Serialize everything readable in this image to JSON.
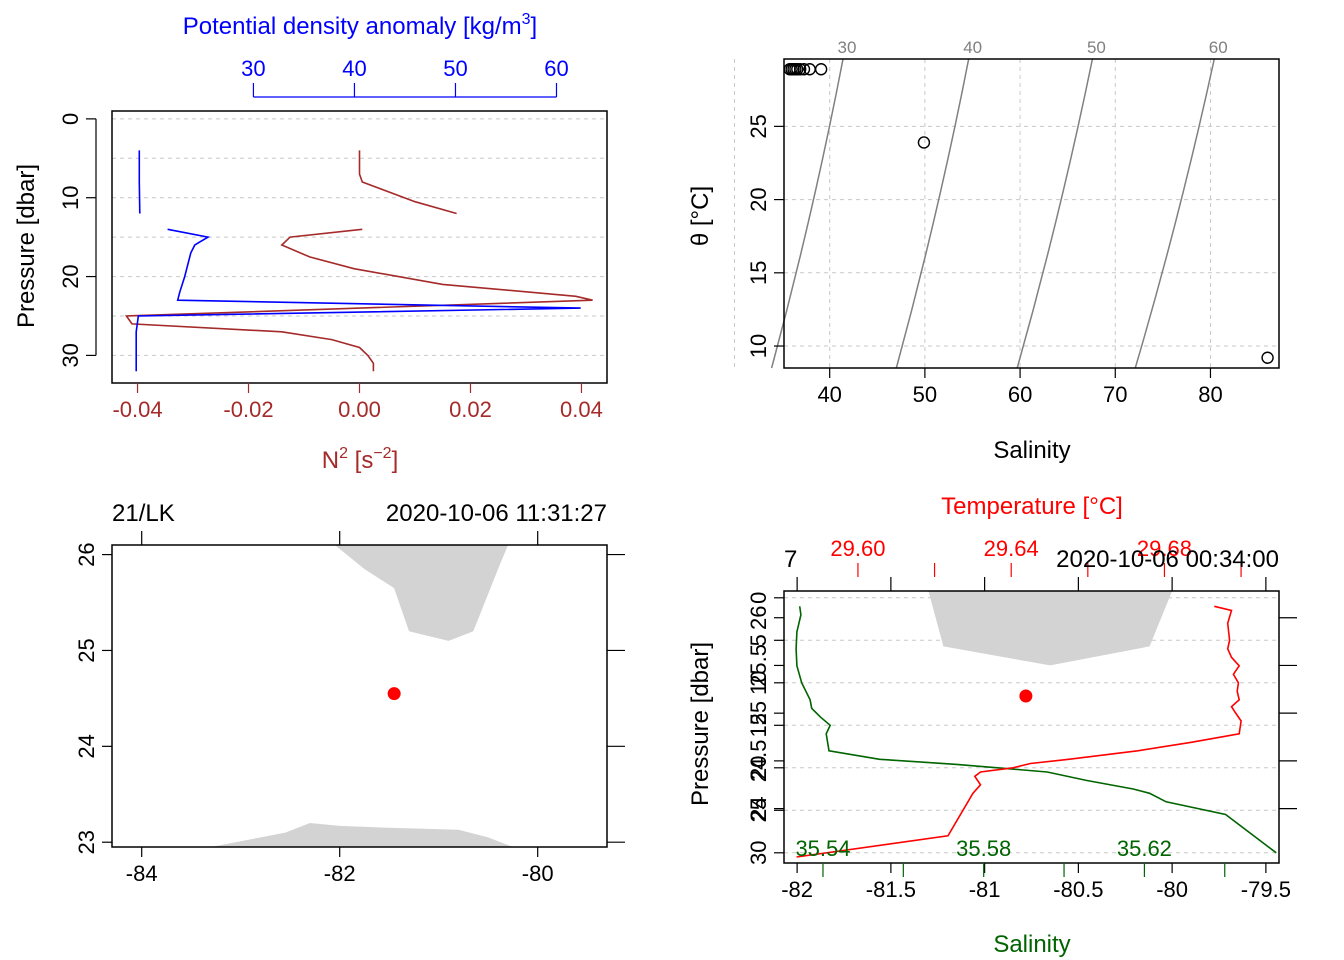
{
  "colors": {
    "axis": "#000000",
    "grid": "#c8c8c8",
    "density": "#0000ff",
    "n2": "#a52a2a",
    "land": "#d3d3d3",
    "station": "#ff0000",
    "temperature": "#ff0000",
    "salinity": "#006400",
    "isopycnal": "#808080",
    "isopycnal_label": "#808080"
  },
  "chart_data": [
    {
      "id": "profile-density-n2",
      "type": "line",
      "ylabel": "Pressure [dbar]",
      "ylim": [
        33.5,
        -1
      ],
      "y_ticks": [
        0,
        10,
        20,
        30
      ],
      "y_tick_labels": [
        "0",
        "10",
        "20",
        "30"
      ],
      "grid": true,
      "top_axis": {
        "label_prefix": "Potential density anomaly [kg/m",
        "label_sup": "3",
        "label_suffix": "]",
        "range": [
          16,
          65
        ],
        "ticks": [
          30,
          40,
          50,
          60
        ],
        "tick_labels": [
          "30",
          "40",
          "50",
          "60"
        ]
      },
      "bottom_axis": {
        "label_prefix": "N",
        "label_sup1": "2",
        "label_mid": " [s",
        "label_sup2": "−2",
        "label_suffix": "]",
        "range": [
          -0.0446,
          0.0446
        ],
        "ticks": [
          -0.04,
          -0.02,
          0,
          0.02,
          0.04
        ],
        "tick_labels": [
          "-0.04",
          "-0.02",
          "0.00",
          "0.02",
          "0.04"
        ]
      },
      "series": [
        {
          "key": "density",
          "segments": [
            [
              [
                18.7,
                4
              ],
              [
                18.7,
                8
              ],
              [
                18.75,
                12
              ]
            ],
            [
              [
                21.5,
                14
              ],
              [
                25.5,
                15
              ],
              [
                24.2,
                16
              ],
              [
                23.8,
                17
              ],
              [
                23.2,
                20
              ],
              [
                22.7,
                22
              ],
              [
                22.5,
                23
              ],
              [
                62.4,
                24
              ],
              [
                18.6,
                25
              ],
              [
                18.5,
                26
              ],
              [
                18.4,
                27
              ],
              [
                18.4,
                32
              ]
            ]
          ]
        },
        {
          "key": "n2",
          "segments": [
            [
              [
                0.0,
                4
              ],
              [
                0.0,
                7
              ],
              [
                0.0005,
                8
              ],
              [
                0.01,
                10.5
              ],
              [
                0.0175,
                12
              ]
            ],
            [
              [
                0.0005,
                14
              ],
              [
                -0.0125,
                15
              ],
              [
                -0.014,
                16
              ],
              [
                -0.009,
                17.5
              ],
              [
                -0.001,
                19
              ],
              [
                0.015,
                21
              ],
              [
                0.039,
                22.5
              ],
              [
                0.042,
                23
              ],
              [
                -0.042,
                25
              ],
              [
                -0.041,
                26
              ],
              [
                -0.014,
                27
              ],
              [
                -0.005,
                28
              ],
              [
                0.0,
                29
              ],
              [
                0.0015,
                30
              ],
              [
                0.0025,
                31
              ],
              [
                0.0025,
                32
              ]
            ]
          ]
        }
      ]
    },
    {
      "id": "ts-diagram",
      "type": "scatter",
      "xlabel": "Salinity",
      "ylabel": "θ [°C]",
      "xlim": [
        35.2,
        87.2
      ],
      "ylim": [
        8.5,
        29.6
      ],
      "x_ticks": [
        40,
        50,
        60,
        70,
        80
      ],
      "x_tick_labels": [
        "40",
        "50",
        "60",
        "70",
        "80"
      ],
      "y_ticks": [
        10,
        15,
        20,
        25
      ],
      "y_tick_labels": [
        "10",
        "15",
        "20",
        "25"
      ],
      "grid": true,
      "points": [
        {
          "x": 35.8,
          "y": 28.9
        },
        {
          "x": 36.0,
          "y": 28.9
        },
        {
          "x": 36.2,
          "y": 28.9
        },
        {
          "x": 36.4,
          "y": 28.9
        },
        {
          "x": 36.6,
          "y": 28.9
        },
        {
          "x": 36.9,
          "y": 28.9
        },
        {
          "x": 37.3,
          "y": 28.9
        },
        {
          "x": 37.9,
          "y": 28.9
        },
        {
          "x": 39.1,
          "y": 28.9
        },
        {
          "x": 49.9,
          "y": 23.9
        },
        {
          "x": 86.0,
          "y": 9.2
        }
      ],
      "isopycnals": [
        {
          "label": "30",
          "top": [
            41.4,
            29.6
          ],
          "bottom": [
            33.9,
            8.5
          ]
        },
        {
          "label": "40",
          "top": [
            54.6,
            29.6
          ],
          "bottom": [
            47.0,
            8.5
          ]
        },
        {
          "label": "50",
          "top": [
            67.6,
            29.6
          ],
          "bottom": [
            59.7,
            8.5
          ]
        },
        {
          "label": "60",
          "top": [
            80.4,
            29.6
          ],
          "bottom": [
            72.1,
            8.5
          ]
        }
      ]
    },
    {
      "id": "station-map",
      "type": "scatter",
      "title_left": "21/LK",
      "title_right": "2020-10-06 11:31:27",
      "xlim": [
        -84.3,
        -79.3
      ],
      "ylim": [
        22.95,
        26.1
      ],
      "x_ticks": [
        -84,
        -82,
        -80
      ],
      "x_tick_labels": [
        "-84",
        "-82",
        "-80"
      ],
      "y_ticks": [
        23,
        24,
        25,
        26
      ],
      "y_tick_labels": [
        "23",
        "24",
        "25",
        "26"
      ],
      "station": {
        "lon": -81.45,
        "lat": 24.55
      },
      "land": [
        [
          [
            -82.05,
            26.1
          ],
          [
            -81.75,
            25.85
          ],
          [
            -81.45,
            25.65
          ],
          [
            -81.3,
            25.2
          ],
          [
            -80.9,
            25.1
          ],
          [
            -80.65,
            25.2
          ],
          [
            -80.4,
            25.85
          ],
          [
            -80.3,
            26.1
          ]
        ],
        [
          [
            -83.3,
            22.95
          ],
          [
            -82.55,
            23.1
          ],
          [
            -82.3,
            23.2
          ],
          [
            -82.0,
            23.17
          ],
          [
            -81.5,
            23.15
          ],
          [
            -80.8,
            23.13
          ],
          [
            -80.5,
            23.05
          ],
          [
            -80.25,
            22.95
          ]
        ]
      ]
    },
    {
      "id": "profile-temperature-salinity",
      "type": "line",
      "title_left": "7",
      "title_right": "2020-10-06 00:34:00",
      "ylabel": "Pressure [dbar]",
      "ylim": [
        31.2,
        -0.8
      ],
      "y_ticks": [
        0,
        5,
        10,
        15,
        20,
        25,
        30
      ],
      "y_tick_labels": [
        "0",
        "5",
        "10",
        "15",
        "20",
        "25",
        "30"
      ],
      "grid": true,
      "temperature_axis": {
        "label": "Temperature [°C]",
        "range": [
          29.5807,
          29.7099
        ],
        "ticks": [
          29.6,
          29.62,
          29.64,
          29.66,
          29.68,
          29.7
        ],
        "tick_labels": [
          "29.60",
          "",
          "29.64",
          "",
          "29.68",
          ""
        ]
      },
      "salinity_axis": {
        "label": "Salinity",
        "range": [
          35.5303,
          35.6535
        ],
        "ticks": [
          35.54,
          35.56,
          35.58,
          35.6,
          35.62,
          35.64
        ],
        "tick_labels": [
          "35.54",
          "",
          "35.58",
          "",
          "35.62",
          ""
        ]
      },
      "map_overlay": {
        "xlim": [
          -82.07,
          -79.43
        ],
        "ylim": [
          23.43,
          26.28
        ],
        "x_ticks": [
          -82,
          -81.5,
          -81,
          -80.5,
          -80,
          -79.5
        ],
        "x_tick_labels": [
          "-82",
          "-81.5",
          "-81",
          "-80.5",
          "-80",
          "-79.5"
        ],
        "y_ticks": [
          24,
          24.5,
          25,
          25.5,
          26
        ],
        "y_tick_labels": [
          "24",
          "24.5",
          "25",
          "25.5",
          "26"
        ],
        "station": {
          "lon": -80.78,
          "lat": 25.18
        },
        "land": [
          [
            [
              -81.3,
              26.28
            ],
            [
              -81.22,
              25.7
            ],
            [
              -80.65,
              25.5
            ],
            [
              -80.12,
              25.7
            ],
            [
              -80.0,
              26.28
            ]
          ]
        ]
      },
      "series": [
        {
          "key": "temperature",
          "points": [
            [
              29.693,
              1
            ],
            [
              29.6975,
              1.5
            ],
            [
              29.6965,
              3
            ],
            [
              29.697,
              5
            ],
            [
              29.6965,
              6
            ],
            [
              29.6975,
              7
            ],
            [
              29.6995,
              8
            ],
            [
              29.698,
              9
            ],
            [
              29.6993,
              10
            ],
            [
              29.699,
              11
            ],
            [
              29.6995,
              12
            ],
            [
              29.6975,
              12.8
            ],
            [
              29.6985,
              13.5
            ],
            [
              29.7,
              14.5
            ],
            [
              29.6995,
              16
            ],
            [
              29.687,
              17
            ],
            [
              29.673,
              18
            ],
            [
              29.655,
              19
            ],
            [
              29.645,
              19.5
            ],
            [
              29.6405,
              20
            ],
            [
              29.632,
              20.5
            ],
            [
              29.6305,
              21
            ],
            [
              29.632,
              22
            ],
            [
              29.63,
              23
            ],
            [
              29.6235,
              28
            ],
            [
              29.584,
              30.5
            ]
          ]
        },
        {
          "key": "salinity",
          "points": [
            [
              35.5342,
              1
            ],
            [
              35.5345,
              2
            ],
            [
              35.5335,
              4
            ],
            [
              35.5333,
              6
            ],
            [
              35.5335,
              8
            ],
            [
              35.5347,
              10
            ],
            [
              35.5368,
              12
            ],
            [
              35.5372,
              13
            ],
            [
              35.5393,
              14
            ],
            [
              35.5418,
              15
            ],
            [
              35.5408,
              16
            ],
            [
              35.5415,
              18
            ],
            [
              35.5541,
              19
            ],
            [
              35.5733,
              19.6
            ],
            [
              35.5958,
              20.5
            ],
            [
              35.6057,
              21.5
            ],
            [
              35.6172,
              22.5
            ],
            [
              35.6213,
              23
            ],
            [
              35.6254,
              24
            ],
            [
              35.6402,
              25.5
            ],
            [
              35.6528,
              30
            ]
          ]
        }
      ]
    }
  ]
}
